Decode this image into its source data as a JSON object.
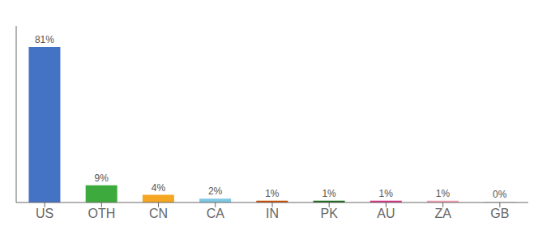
{
  "chart_data": {
    "type": "bar",
    "categories": [
      "US",
      "OTH",
      "CN",
      "CA",
      "IN",
      "PK",
      "AU",
      "ZA",
      "GB"
    ],
    "values": [
      81,
      9,
      4,
      2,
      1,
      1,
      1,
      1,
      0.3
    ],
    "value_labels": [
      "81%",
      "9%",
      "4%",
      "2%",
      "1%",
      "1%",
      "1%",
      "1%",
      "0%"
    ],
    "colors": [
      "#4472c4",
      "#3daa3d",
      "#f5a623",
      "#7ec8e3",
      "#c85000",
      "#1a6b1a",
      "#d63384",
      "#f4a0b5",
      "#cccccc"
    ],
    "ylim": [
      0,
      92
    ],
    "tick_labels": "x",
    "data_labels": true
  }
}
